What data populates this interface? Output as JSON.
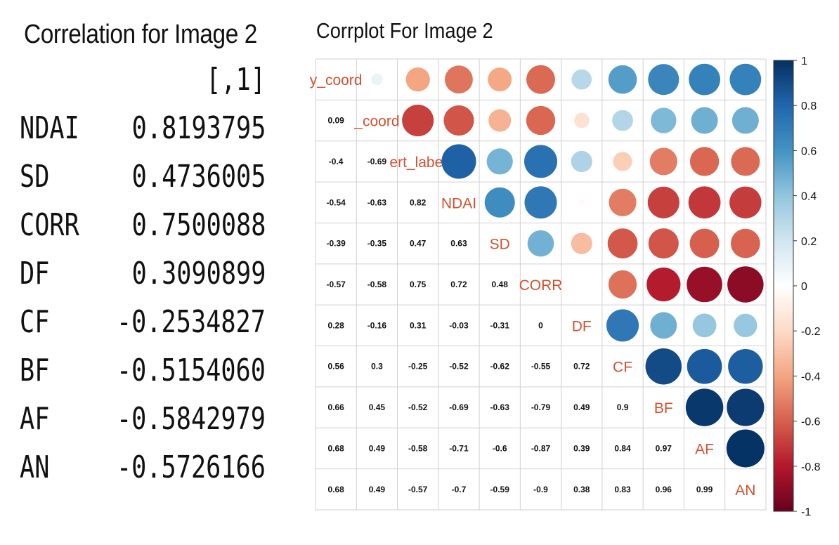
{
  "left_panel": {
    "title": "Correlation for Image 2",
    "column_header": "[,1]",
    "rows": [
      {
        "name": "NDAI",
        "value": "0.8193795"
      },
      {
        "name": "SD",
        "value": "0.4736005"
      },
      {
        "name": "CORR",
        "value": "0.7500088"
      },
      {
        "name": "DF",
        "value": "0.3090899"
      },
      {
        "name": "CF",
        "value": "-0.2534827"
      },
      {
        "name": "BF",
        "value": "-0.5154060"
      },
      {
        "name": "AF",
        "value": "-0.5842979"
      },
      {
        "name": "AN",
        "value": "-0.5726166"
      }
    ]
  },
  "chart_data": {
    "type": "heatmap",
    "title": "Corrplot For Image 2",
    "variables": [
      "y_coord",
      "x_coord",
      "expert_label",
      "NDAI",
      "SD",
      "CORR",
      "DF",
      "CF",
      "BF",
      "AF",
      "AN"
    ],
    "diagonal_labels": [
      "y_coord",
      "_coord",
      "ert_label",
      "NDAI",
      "SD",
      "CORR",
      "DF",
      "CF",
      "BF",
      "AF",
      "AN"
    ],
    "lower_triangle": [
      [],
      [
        0.09
      ],
      [
        -0.4,
        -0.69
      ],
      [
        -0.54,
        -0.63,
        0.82
      ],
      [
        -0.39,
        -0.35,
        0.47,
        0.63
      ],
      [
        -0.57,
        -0.58,
        0.75,
        0.72,
        0.48
      ],
      [
        0.28,
        -0.16,
        0.31,
        -0.03,
        -0.31,
        0
      ],
      [
        0.56,
        0.3,
        -0.25,
        -0.52,
        -0.62,
        -0.55,
        0.72
      ],
      [
        0.66,
        0.45,
        -0.52,
        -0.69,
        -0.63,
        -0.79,
        0.49,
        0.9
      ],
      [
        0.68,
        0.49,
        -0.58,
        -0.71,
        -0.6,
        -0.87,
        0.39,
        0.84,
        0.97
      ],
      [
        0.68,
        0.49,
        -0.57,
        -0.7,
        -0.59,
        -0.9,
        0.38,
        0.83,
        0.96,
        0.99
      ]
    ],
    "colorbar": {
      "ticks": [
        "1",
        "0.8",
        "0.6",
        "0.4",
        "0.2",
        "0",
        "-0.2",
        "-0.4",
        "-0.6",
        "-0.8",
        "-1"
      ],
      "range": [
        -1,
        1
      ],
      "colors": [
        "#67001F",
        "#B2182B",
        "#D6604D",
        "#F4A582",
        "#FDDBC7",
        "#FFFFFF",
        "#D1E5F0",
        "#92C5DE",
        "#4393C3",
        "#2166AC",
        "#053061"
      ]
    },
    "label_color": "#D0512E"
  }
}
